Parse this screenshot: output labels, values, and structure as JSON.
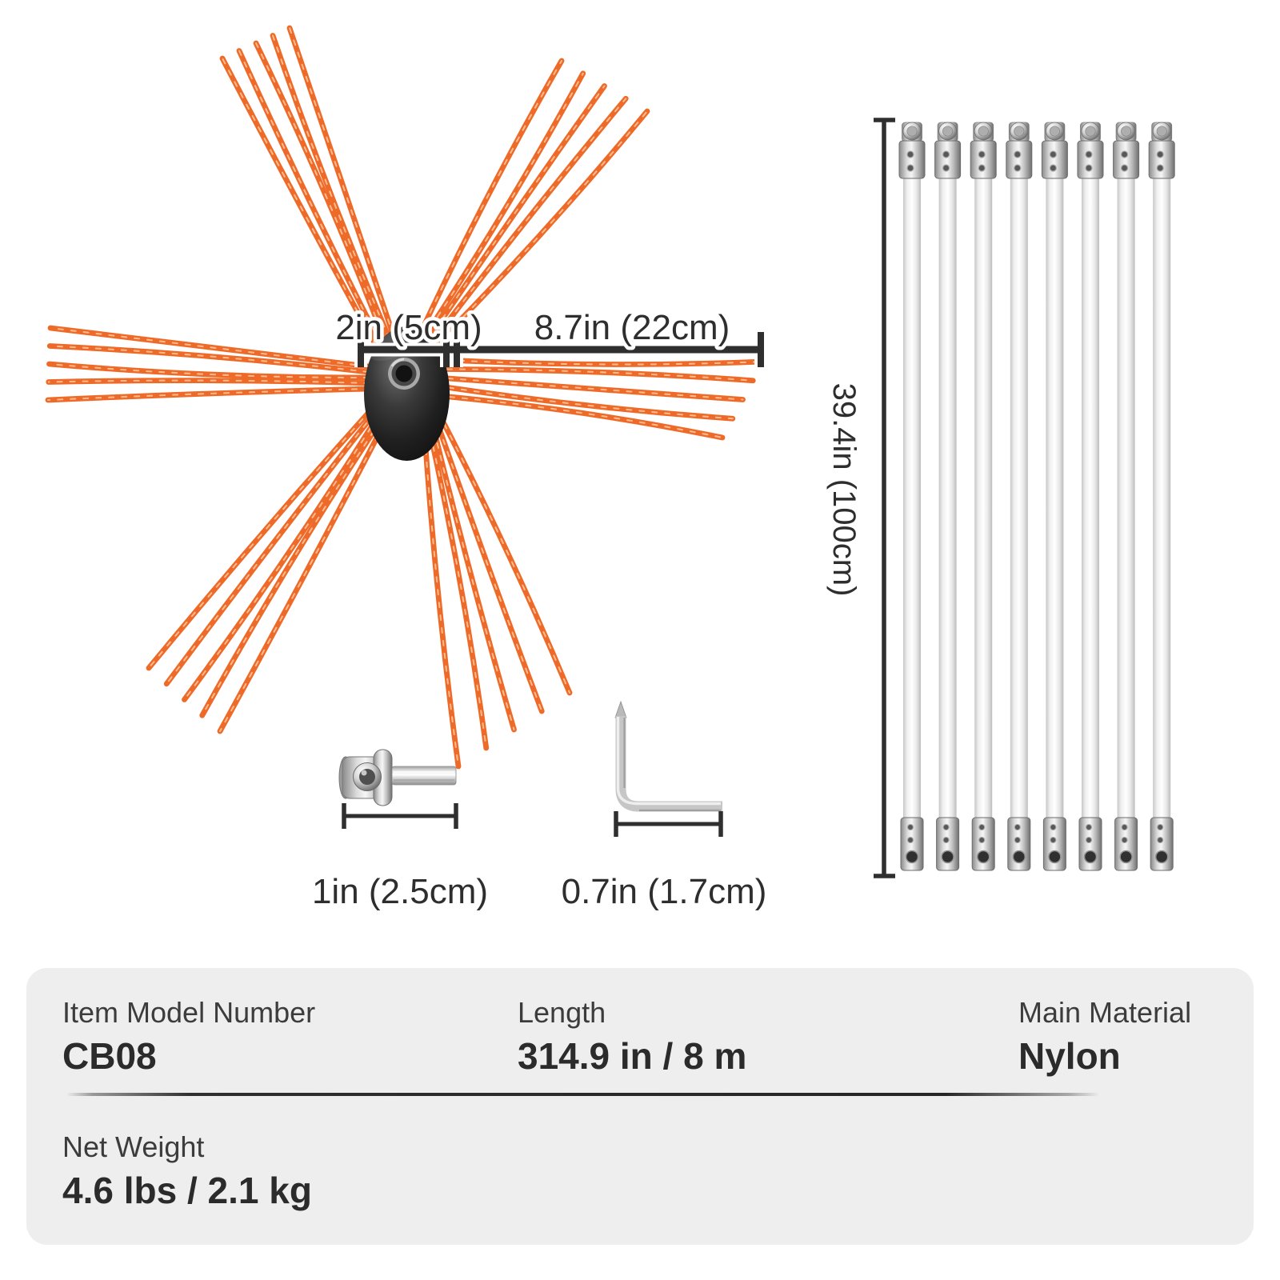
{
  "product_diagram": {
    "brush": {
      "hub_dim_label": "2in (5cm)",
      "bristle_dim_label": "8.7in (22cm)",
      "arm_count": 6,
      "strands_per_arm": 5,
      "bristle_color": "#ee6a28",
      "bristle_highlight_color": "#ffc9a1"
    },
    "rods": {
      "count": 8,
      "length_dim_label": "39.4in (100cm)"
    },
    "drill_adapter": {
      "dim_label": "1in (2.5cm)"
    },
    "hex_wrench": {
      "dim_label": "0.7in (1.7cm)"
    },
    "dim_line_color": "#2f2f2f"
  },
  "spec_table": {
    "card_bg": "#eeeeee",
    "rows": [
      {
        "label": "Item Model Number",
        "value": "CB08"
      },
      {
        "label": "Length",
        "value": "314.9 in / 8 m"
      },
      {
        "label": "Main Material",
        "value": "Nylon"
      },
      {
        "label": "Net Weight",
        "value": "4.6 lbs / 2.1 kg"
      }
    ]
  }
}
